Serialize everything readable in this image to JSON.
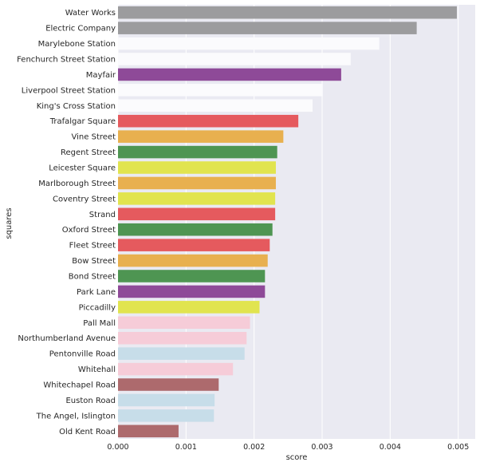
{
  "chart_data": {
    "type": "bar",
    "orientation": "horizontal",
    "title": "",
    "xlabel": "score",
    "ylabel": "squares",
    "xlim": [
      0,
      0.00525
    ],
    "xticks": [
      "0.000",
      "0.001",
      "0.002",
      "0.003",
      "0.004",
      "0.005"
    ],
    "grid": true,
    "style": "seaborn-darkgrid",
    "background_color": "#eaeaf2",
    "categories": [
      "Water Works",
      "Electric Company",
      "Marylebone Station",
      "Fenchurch Street Station",
      "Mayfair",
      "Liverpool Street Station",
      "King's Cross Station",
      "Trafalgar Square",
      "Vine Street",
      "Regent Street",
      "Leicester Square",
      "Marlborough Street",
      "Coventry Street",
      "Strand",
      "Oxford Street",
      "Fleet Street",
      "Bow Street",
      "Bond Street",
      "Park Lane",
      "Piccadilly",
      "Pall Mall",
      "Northumberland Avenue",
      "Pentonville Road",
      "Whitehall",
      "Whitechapel Road",
      "Euston Road",
      "The Angel, Islington",
      "Old Kent Road"
    ],
    "values": [
      0.00498,
      0.00439,
      0.00384,
      0.00342,
      0.00328,
      0.00301,
      0.00286,
      0.00265,
      0.00243,
      0.00234,
      0.00232,
      0.00232,
      0.00231,
      0.00231,
      0.00227,
      0.00223,
      0.0022,
      0.00216,
      0.00216,
      0.00208,
      0.00194,
      0.00189,
      0.00186,
      0.00169,
      0.00148,
      0.00142,
      0.00141,
      0.00089
    ],
    "colors": [
      "#9c9c9e",
      "#9c9c9e",
      "#fbfbfd",
      "#fbfbfd",
      "#8e4a98",
      "#fbfbfd",
      "#fbfbfd",
      "#e55a5e",
      "#e8b04f",
      "#4e9552",
      "#e1e44f",
      "#e8b04f",
      "#e1e44f",
      "#e55a5e",
      "#4e9552",
      "#e55a5e",
      "#e8b04f",
      "#4e9552",
      "#8e4a98",
      "#e1e44f",
      "#f6ccd8",
      "#f6ccd8",
      "#c7dde9",
      "#f6ccd8",
      "#ad6a6d",
      "#c7dde9",
      "#c7dde9",
      "#ad6a6d"
    ]
  }
}
